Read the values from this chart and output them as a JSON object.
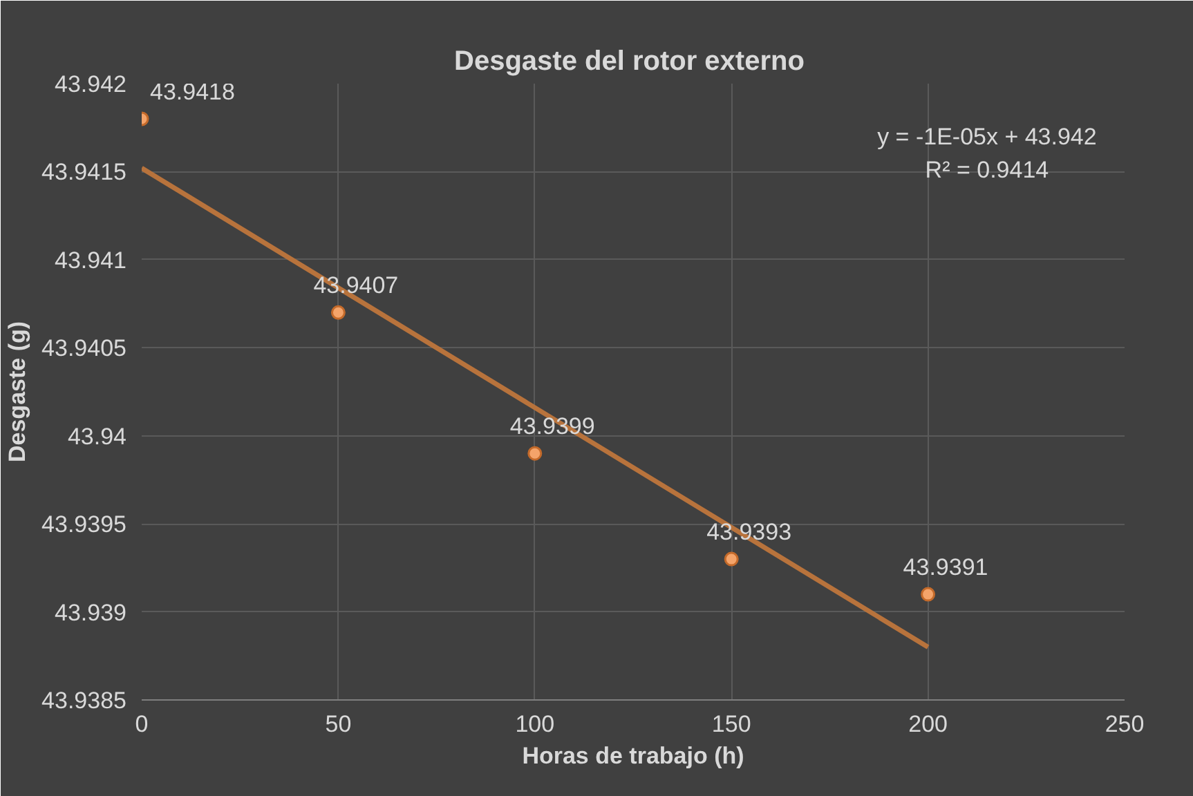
{
  "chart_data": {
    "type": "scatter",
    "title": "Desgaste  del rotor externo",
    "xlabel": "Horas de trabajo (h)",
    "ylabel": "Desgaste (g)",
    "xlim": [
      0,
      250
    ],
    "xticks": [
      0,
      50,
      100,
      150,
      200,
      250
    ],
    "ylim": [
      43.9385,
      43.942
    ],
    "yticks": [
      43.9385,
      43.939,
      43.9395,
      43.94,
      43.9405,
      43.941,
      43.9415,
      43.942
    ],
    "grid": true,
    "annotations": [
      "y = -1E-05x + 43.942",
      "R² = 0.9414"
    ],
    "series": [
      {
        "marker": "circle",
        "color": "#f4a46a",
        "x": [
          0,
          50,
          100,
          150,
          200
        ],
        "values": [
          43.9418,
          43.9407,
          43.9399,
          43.9393,
          43.9391
        ],
        "value_labels": [
          "43.9418",
          "43.9407",
          "43.9399",
          "43.9393",
          "43.9391"
        ]
      },
      {
        "type": "line",
        "color": "#b8733c",
        "line_style": "solid",
        "x": [
          0,
          200
        ],
        "values": [
          43.94152,
          43.9388
        ]
      }
    ]
  }
}
